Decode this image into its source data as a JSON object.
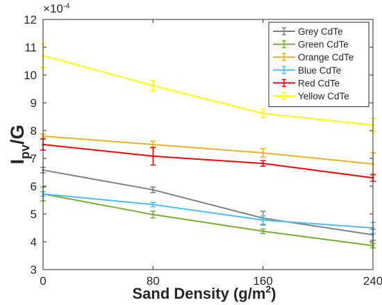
{
  "chart_data": {
    "type": "line",
    "scale_label": "×10",
    "scale_exp": "-4",
    "xlabel_main": "Sand Density (g/m",
    "xlabel_sup": "2",
    "xlabel_end": ")",
    "ylabel_main": "I",
    "ylabel_sub": "pv",
    "ylabel_end": "/G",
    "x": [
      0,
      80,
      160,
      240
    ],
    "xlim": [
      0,
      240
    ],
    "ylim": [
      3,
      12
    ],
    "xticks": [
      "0",
      "80",
      "160",
      "240"
    ],
    "yticks": [
      "3",
      "4",
      "5",
      "6",
      "7",
      "8",
      "9",
      "10",
      "11",
      "12"
    ],
    "legend_position": "top-right",
    "grid": false,
    "series": [
      {
        "name": "Grey CdTe",
        "color": "#808080",
        "values": [
          6.58,
          5.87,
          4.85,
          4.25
        ],
        "errors": [
          0.1,
          0.1,
          0.25,
          0.2
        ]
      },
      {
        "name": "Green CdTe",
        "color": "#77ac30",
        "values": [
          5.72,
          4.98,
          4.38,
          3.86
        ],
        "errors": [
          0.25,
          0.12,
          0.08,
          0.08
        ]
      },
      {
        "name": "Orange CdTe",
        "color": "#edb120",
        "values": [
          7.8,
          7.5,
          7.2,
          6.8
        ],
        "errors": [
          0.08,
          0.12,
          0.15,
          0.4
        ]
      },
      {
        "name": "Blue CdTe",
        "color": "#4dbeee",
        "values": [
          5.72,
          5.34,
          4.78,
          4.5
        ],
        "errors": [
          0.08,
          0.08,
          0.15,
          0.2
        ]
      },
      {
        "name": "Red CdTe",
        "color": "#ff0000",
        "values": [
          7.5,
          7.08,
          6.82,
          6.3
        ],
        "errors": [
          0.2,
          0.32,
          0.1,
          0.12
        ]
      },
      {
        "name": "Yellow CdTe",
        "color": "#ffff00",
        "values": [
          10.7,
          9.62,
          8.62,
          8.2
        ],
        "errors": [
          0.42,
          0.18,
          0.15,
          0.25
        ]
      }
    ]
  }
}
